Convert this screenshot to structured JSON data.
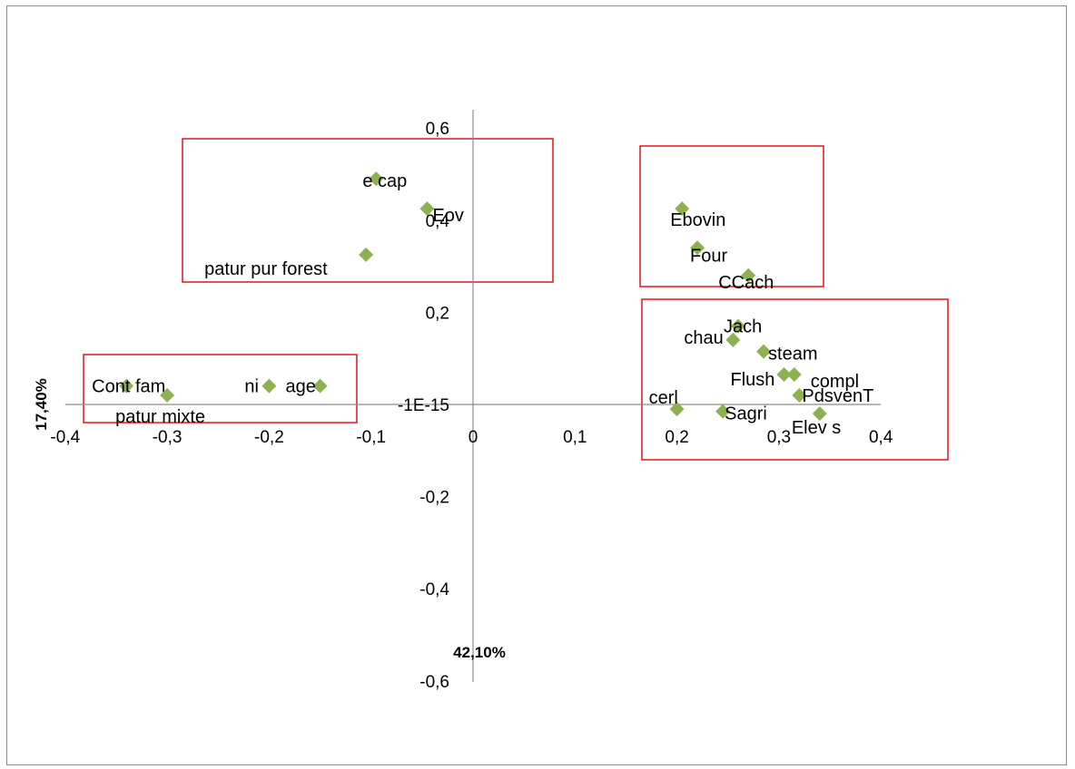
{
  "chart_data": {
    "type": "scatter",
    "title": "",
    "xlabel": "42,10%",
    "ylabel": "17,40%",
    "xlim": [
      -0.4,
      0.4
    ],
    "ylim": [
      -0.6,
      0.6
    ],
    "x_ticks": [
      "-0,4",
      "-0,3",
      "-0,2",
      "-0,1",
      "0",
      "0,1",
      "0,2",
      "0,3",
      "0,4"
    ],
    "y_ticks": [
      "0,6",
      "0,4",
      "0,2",
      "-1E-15",
      "-0,2",
      "-0,4",
      "-0,6"
    ],
    "grid": false,
    "legend": "none",
    "marker_color": "#8db050",
    "box_color": "#e3141c",
    "points": [
      {
        "label": "e cap",
        "x": -0.095,
        "y": 0.49
      },
      {
        "label": "Eov",
        "x": -0.045,
        "y": 0.425
      },
      {
        "label": "patur pur forest",
        "x": -0.105,
        "y": 0.325
      },
      {
        "label": "Cont fam",
        "x": -0.34,
        "y": 0.04
      },
      {
        "label": "patur mixte",
        "x": -0.3,
        "y": 0.02
      },
      {
        "label": "ni",
        "x": -0.2,
        "y": 0.04
      },
      {
        "label": "age",
        "x": -0.15,
        "y": 0.04
      },
      {
        "label": "Ebovin",
        "x": 0.205,
        "y": 0.425
      },
      {
        "label": "Four",
        "x": 0.22,
        "y": 0.34
      },
      {
        "label": "CCach",
        "x": 0.27,
        "y": 0.28
      },
      {
        "label": "chau",
        "x": 0.255,
        "y": 0.14
      },
      {
        "label": "Jach",
        "x": 0.26,
        "y": 0.17
      },
      {
        "label": "steam",
        "x": 0.285,
        "y": 0.115
      },
      {
        "label": "Flush",
        "x": 0.305,
        "y": 0.065
      },
      {
        "label": "compl",
        "x": 0.315,
        "y": 0.065
      },
      {
        "label": "PdsvenT",
        "x": 0.32,
        "y": 0.02
      },
      {
        "label": "cerl",
        "x": 0.2,
        "y": -0.01
      },
      {
        "label": "Sagri",
        "x": 0.245,
        "y": -0.015
      },
      {
        "label": "Elev s",
        "x": 0.34,
        "y": -0.02
      }
    ]
  }
}
